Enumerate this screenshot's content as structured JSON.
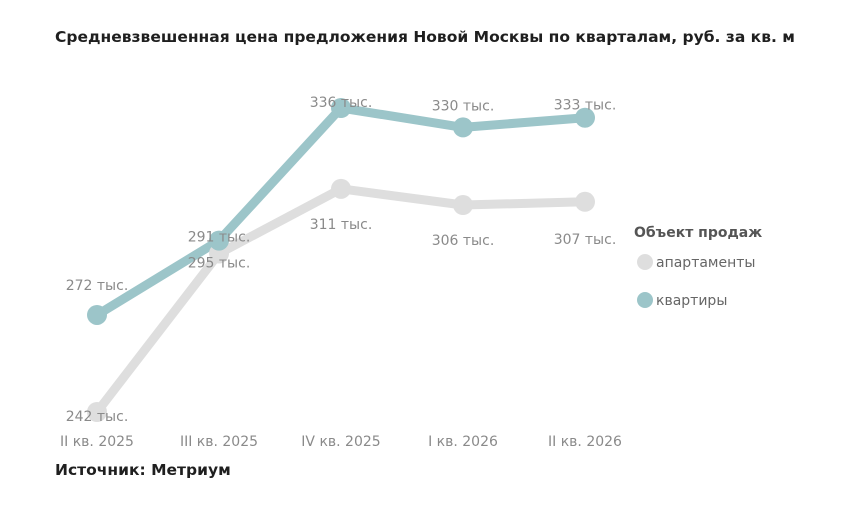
{
  "chart_data": {
    "type": "line",
    "title": "Средневзвешенная цена предложения Новой Москвы по кварталам, руб. за кв. м",
    "source": "Источник: Метриум",
    "categories": [
      "II кв. 2025",
      "III кв. 2025",
      "IV кв. 2025",
      "I кв. 2026",
      "II кв. 2026"
    ],
    "legend_title": "Объект продаж",
    "legend_position": "right",
    "grid": false,
    "ylim": [
      240,
      340
    ],
    "series": [
      {
        "name": "апартаменты",
        "color": "#dedede",
        "values": [
          242,
          291,
          311,
          306,
          307
        ],
        "labels": [
          "242 тыс.",
          "291 тыс.",
          "311 тыс.",
          "306 тыс.",
          "307 тыс."
        ]
      },
      {
        "name": "квартиры",
        "color": "#9cc5c9",
        "values": [
          272,
          295,
          336,
          330,
          333
        ],
        "labels": [
          "272 тыс.",
          "295 тыс.",
          "336 тыс.",
          "330 тыс.",
          "333 тыс."
        ]
      }
    ]
  }
}
